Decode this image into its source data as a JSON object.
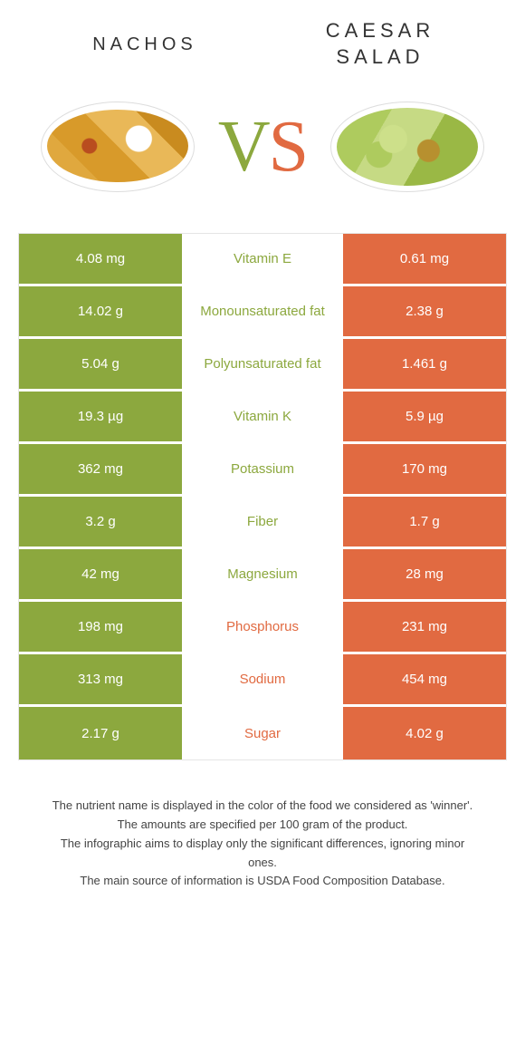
{
  "food_left": {
    "title": "Nachos",
    "color": "#8ca83e"
  },
  "food_right": {
    "title": "Caesar salad",
    "color": "#e16a41"
  },
  "vs_label": {
    "v": "V",
    "s": "S"
  },
  "colors": {
    "left_bg": "#8ca83e",
    "right_bg": "#e16a41",
    "border": "#e5e5e5",
    "text": "#333333",
    "bg": "#ffffff"
  },
  "rows": [
    {
      "left": "4.08 mg",
      "label": "Vitamin E",
      "winner": "left",
      "right": "0.61 mg"
    },
    {
      "left": "14.02 g",
      "label": "Monounsaturated fat",
      "winner": "left",
      "right": "2.38 g"
    },
    {
      "left": "5.04 g",
      "label": "Polyunsaturated fat",
      "winner": "left",
      "right": "1.461 g"
    },
    {
      "left": "19.3 µg",
      "label": "Vitamin K",
      "winner": "left",
      "right": "5.9 µg"
    },
    {
      "left": "362 mg",
      "label": "Potassium",
      "winner": "left",
      "right": "170 mg"
    },
    {
      "left": "3.2 g",
      "label": "Fiber",
      "winner": "left",
      "right": "1.7 g"
    },
    {
      "left": "42 mg",
      "label": "Magnesium",
      "winner": "left",
      "right": "28 mg"
    },
    {
      "left": "198 mg",
      "label": "Phosphorus",
      "winner": "right",
      "right": "231 mg"
    },
    {
      "left": "313 mg",
      "label": "Sodium",
      "winner": "right",
      "right": "454 mg"
    },
    {
      "left": "2.17 g",
      "label": "Sugar",
      "winner": "right",
      "right": "4.02 g"
    }
  ],
  "footer": {
    "line1": "The nutrient name is displayed in the color of the food we considered as 'winner'.",
    "line2": "The amounts are specified per 100 gram of the product.",
    "line3": "The infographic aims to display only the significant differences, ignoring minor ones.",
    "line4": "The main source of information is USDA Food Composition Database."
  }
}
